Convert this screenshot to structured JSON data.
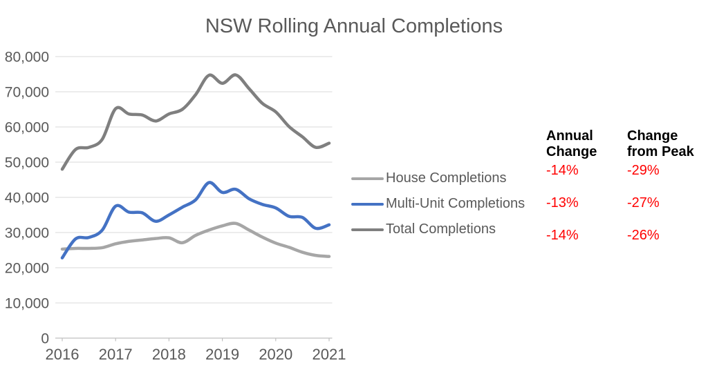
{
  "title": "NSW Rolling Annual Completions",
  "colors": {
    "title_text": "#595959",
    "axis_text": "#595959",
    "gridline": "#D9D9D9",
    "axis_line": "#BFBFBF",
    "negative_value": "#FF0000",
    "table_header": "#000000"
  },
  "chart_data": {
    "type": "line",
    "title": "NSW Rolling Annual Completions",
    "smoothed": true,
    "grid": true,
    "legend_position": "right-of-plot",
    "xlabel": "",
    "ylabel": "",
    "ylim": [
      0,
      80000
    ],
    "x_tick_labels": [
      "2016",
      "2017",
      "2018",
      "2019",
      "2020",
      "2021"
    ],
    "y_ticks": [
      {
        "value": 0,
        "label": "0"
      },
      {
        "value": 10000,
        "label": "10,000"
      },
      {
        "value": 20000,
        "label": "20,000"
      },
      {
        "value": 30000,
        "label": "30,000"
      },
      {
        "value": 40000,
        "label": "40,000"
      },
      {
        "value": 50000,
        "label": "50,000"
      },
      {
        "value": 60000,
        "label": "60,000"
      },
      {
        "value": 70000,
        "label": "70,000"
      },
      {
        "value": 80000,
        "label": "80,000"
      }
    ],
    "x": [
      "2016-Q1",
      "2016-Q2",
      "2016-Q3",
      "2016-Q4",
      "2017-Q1",
      "2017-Q2",
      "2017-Q3",
      "2017-Q4",
      "2018-Q1",
      "2018-Q2",
      "2018-Q3",
      "2018-Q4",
      "2019-Q1",
      "2019-Q2",
      "2019-Q3",
      "2019-Q4",
      "2020-Q1",
      "2020-Q2",
      "2020-Q3",
      "2020-Q4",
      "2021-Q1"
    ],
    "series": [
      {
        "name": "House Completions",
        "color": "#A6A6A6",
        "values": [
          25300,
          25500,
          25500,
          25700,
          26800,
          27500,
          27900,
          28300,
          28500,
          27100,
          29200,
          30700,
          31900,
          32600,
          30700,
          28700,
          27000,
          25800,
          24400,
          23500,
          23200
        ]
      },
      {
        "name": "Multi-Unit Completions",
        "color": "#4472C4",
        "values": [
          22800,
          28200,
          28600,
          30700,
          37500,
          35800,
          35600,
          33200,
          35000,
          37200,
          39300,
          44200,
          41400,
          42300,
          39600,
          38000,
          37000,
          34600,
          34300,
          31200,
          32200
        ]
      },
      {
        "name": "Total Completions",
        "color": "#7F7F7F",
        "values": [
          48000,
          53600,
          54200,
          56500,
          65200,
          63700,
          63400,
          61700,
          63700,
          65000,
          69200,
          74700,
          72400,
          74800,
          70900,
          66700,
          64300,
          60100,
          57200,
          54200,
          55400
        ]
      }
    ]
  },
  "legend": {
    "items": [
      {
        "label": "House Completions"
      },
      {
        "label": "Multi-Unit Completions"
      },
      {
        "label": "Total Completions"
      }
    ]
  },
  "summary_table": {
    "columns": [
      "Annual Change",
      "Change from Peak"
    ],
    "rows": [
      {
        "series": "House Completions",
        "annual_change": "-14%",
        "change_from_peak": "-29%"
      },
      {
        "series": "Multi-Unit Completions",
        "annual_change": "-13%",
        "change_from_peak": "-27%"
      },
      {
        "series": "Total Completions",
        "annual_change": "-14%",
        "change_from_peak": "-26%"
      }
    ]
  }
}
